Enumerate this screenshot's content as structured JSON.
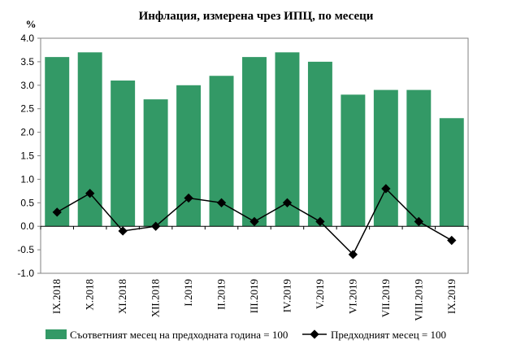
{
  "chart_data": {
    "type": "bar",
    "title": "Инфлация, измерена чрез ИПЦ, по месеци",
    "ylabel": "%",
    "xlabel": "",
    "ylim": [
      -1.0,
      4.0
    ],
    "yticks": [
      "4.0",
      "3.5",
      "3.0",
      "2.5",
      "2.0",
      "1.5",
      "1.0",
      "0.5",
      "0.0",
      "-0.5",
      "-1.0"
    ],
    "ytick_values": [
      4.0,
      3.5,
      3.0,
      2.5,
      2.0,
      1.5,
      1.0,
      0.5,
      0.0,
      -0.5,
      -1.0
    ],
    "grid": false,
    "legend_position": "bottom",
    "categories": [
      "IX.2018",
      "X.2018",
      "XI.2018",
      "XII.2018",
      "I.2019",
      "II.2019",
      "III.2019",
      "IV.2019",
      "V.2019",
      "VI.2019",
      "VII.2019",
      "VIII.2019",
      "IX.2019"
    ],
    "series": [
      {
        "name": "Съответният месец на предходната година = 100",
        "type": "bar",
        "color": "#339966",
        "values": [
          3.6,
          3.7,
          3.1,
          2.7,
          3.0,
          3.2,
          3.6,
          3.7,
          3.5,
          2.8,
          2.9,
          2.9,
          2.3
        ]
      },
      {
        "name": "Предходният месец = 100",
        "type": "line",
        "color": "#000000",
        "values": [
          0.3,
          0.7,
          -0.1,
          0.0,
          0.6,
          0.5,
          0.1,
          0.5,
          0.1,
          -0.6,
          0.8,
          0.1,
          -0.3
        ]
      }
    ]
  }
}
